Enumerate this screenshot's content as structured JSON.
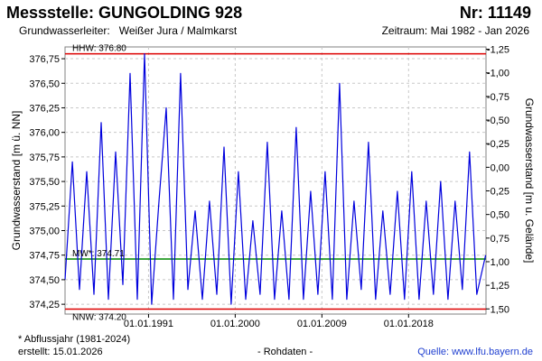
{
  "header": {
    "station": "Messstelle: GUNGOLDING 928",
    "number": "Nr: 11149",
    "aquifer_label": "Grundwasserleiter:",
    "aquifer": "Weißer Jura / Malmkarst",
    "period": "Zeitraum: Mai 1982 - Jan 2026"
  },
  "footer": {
    "note": "* Abflussjahr (1981-2024)",
    "created": "erstellt:  15.01.2026",
    "data_status": "- Rohdaten -",
    "source": "Quelle: www.lfu.bayern.de"
  },
  "colors": {
    "series": "#0000dd",
    "reference_line": "#dd0000",
    "mean_line": "#008800",
    "grid": "#c8c8c8",
    "link": "#1f3fd0"
  },
  "chart_data": {
    "type": "line",
    "xlabel": "",
    "ylabel": "Grundwasserstand [m ü. NN]",
    "ylabel_right": "Grundwasserstand [m u. Gelände]",
    "xlim": [
      "1982-05-01",
      "2026-01-15"
    ],
    "ylim": [
      374.15,
      376.87
    ],
    "ylim_right": [
      1.5546,
      -1.2746
    ],
    "x_ticks": [
      "01.01.1991",
      "01.01.2000",
      "01.01.2009",
      "01.01.2018"
    ],
    "y_ticks": [
      374.25,
      374.5,
      374.75,
      375.0,
      375.25,
      375.5,
      375.75,
      376.0,
      376.25,
      376.5,
      376.75
    ],
    "y_tick_labels": [
      "374,25",
      "374,50",
      "374,75",
      "375,00",
      "375,25",
      "375,50",
      "375,75",
      "376,00",
      "376,25",
      "376,50",
      "376,75"
    ],
    "y_ticks_right": [
      1.5,
      1.25,
      1.0,
      0.75,
      0.5,
      0.25,
      0.0,
      -0.25,
      -0.5,
      -0.75,
      -1.0,
      -1.25
    ],
    "y_tick_labels_right": [
      "1,50",
      "1,25",
      "1,00",
      "0,75",
      "0,50",
      "0,25",
      "0,00",
      "-0,25",
      "-0,50",
      "-0,75",
      "-1,00",
      "-1,25"
    ],
    "grid": true,
    "reference_lines": [
      {
        "name": "HHW",
        "label": "HHW: 376.80",
        "value": 376.8
      },
      {
        "name": "MW",
        "label": "MW*: 374.71",
        "value": 374.71
      },
      {
        "name": "NNW",
        "label": "NNW: 374.20",
        "value": 374.2
      }
    ],
    "series": [
      {
        "x": [
          "1982-05-01",
          "1983-02-01",
          "1983-11-01",
          "1984-08-01",
          "1985-05-01",
          "1986-02-01",
          "1986-11-01",
          "1987-08-01",
          "1988-05-01",
          "1989-02-01",
          "1989-11-01",
          "1990-08-01",
          "1991-05-01",
          "1992-02-01",
          "1992-11-01",
          "1993-08-01",
          "1994-05-01",
          "1995-02-01",
          "1995-11-01",
          "1996-08-01",
          "1997-05-01",
          "1998-02-01",
          "1998-11-01",
          "1999-08-01",
          "2000-05-01",
          "2001-02-01",
          "2001-11-01",
          "2002-08-01",
          "2003-05-01",
          "2004-02-01",
          "2004-11-01",
          "2005-08-01",
          "2006-05-01",
          "2007-02-01",
          "2007-11-01",
          "2008-08-01",
          "2009-05-01",
          "2010-02-01",
          "2010-11-01",
          "2011-08-01",
          "2012-05-01",
          "2013-02-01",
          "2013-11-01",
          "2014-08-01",
          "2015-05-01",
          "2016-02-01",
          "2016-11-01",
          "2017-08-01",
          "2018-05-01",
          "2019-02-01",
          "2019-11-01",
          "2020-08-01",
          "2021-05-01",
          "2022-02-01",
          "2022-11-01",
          "2023-08-01",
          "2024-05-01",
          "2025-02-01",
          "2026-01-01"
        ],
        "y": [
          374.5,
          375.7,
          374.4,
          375.6,
          374.35,
          376.1,
          374.3,
          375.8,
          374.45,
          376.6,
          374.3,
          376.8,
          374.25,
          375.3,
          376.25,
          374.3,
          376.6,
          374.4,
          375.2,
          374.3,
          375.3,
          374.35,
          375.85,
          374.25,
          375.6,
          374.3,
          375.1,
          374.35,
          375.9,
          374.3,
          375.2,
          374.3,
          376.05,
          374.3,
          375.4,
          374.35,
          375.6,
          374.3,
          376.5,
          374.3,
          375.3,
          374.4,
          375.9,
          374.3,
          375.2,
          374.35,
          375.4,
          374.3,
          375.6,
          374.3,
          375.3,
          374.35,
          375.5,
          374.3,
          375.3,
          374.4,
          375.8,
          374.35,
          374.75
        ]
      }
    ]
  }
}
